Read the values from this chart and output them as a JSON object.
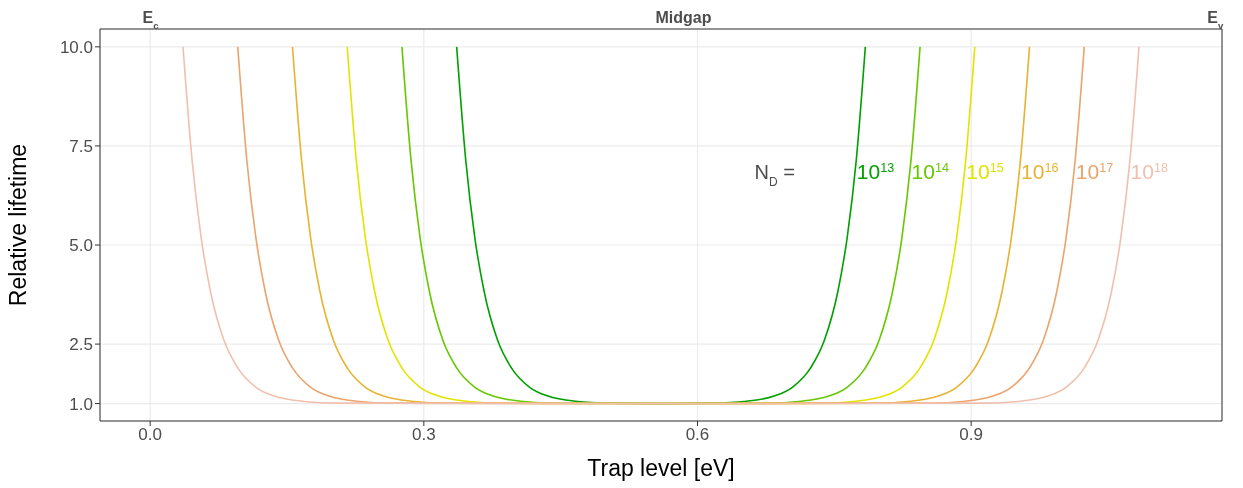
{
  "chart_data": {
    "type": "line",
    "xlabel": "Trap level [eV]",
    "ylabel": "Relative lifetime",
    "legend_title": "N$_{D}$ =",
    "xlim": [
      -0.055,
      1.175
    ],
    "xticks": [
      {
        "value": 0,
        "label": "0.0"
      },
      0.3,
      0.6,
      0.9
    ],
    "annotations": [
      "E$_{c}$",
      "Midgap",
      "E$_{v}$"
    ],
    "ylim": [
      0.56,
      10.45
    ],
    "yticks": [
      {
        "value": 1,
        "label": "1.0"
      },
      2.5,
      {
        "value": 5,
        "label": "5.0"
      },
      7.5,
      {
        "value": 10,
        "label": "10.0"
      }
    ],
    "grid": true,
    "series": [
      {
        "name": "10$^{13}$",
        "color": "#00a000",
        "x": [
          0.336,
          0.346,
          0.356,
          0.366,
          0.381,
          0.396,
          0.416,
          0.436,
          0.466,
          0.506,
          0.56,
          0.614,
          0.654,
          0.684,
          0.704,
          0.724,
          0.739,
          0.754,
          0.764,
          0.774,
          0.784
        ],
        "values": [
          10,
          7.13,
          5.17,
          3.84,
          2.59,
          1.9,
          1.41,
          1.19,
          1.06,
          1.01,
          1,
          1.01,
          1.06,
          1.19,
          1.41,
          1.9,
          2.59,
          3.84,
          5.17,
          7.13,
          10
        ]
      },
      {
        "name": "10$^{14}$",
        "color": "#66c800",
        "x": [
          0.276,
          0.286,
          0.296,
          0.306,
          0.321,
          0.336,
          0.356,
          0.376,
          0.406,
          0.446,
          0.56,
          0.674,
          0.714,
          0.744,
          0.764,
          0.784,
          0.799,
          0.814,
          0.824,
          0.834,
          0.844
        ],
        "values": [
          10,
          7.13,
          5.17,
          3.84,
          2.59,
          1.9,
          1.41,
          1.19,
          1.06,
          1.01,
          1,
          1.01,
          1.06,
          1.19,
          1.41,
          1.9,
          2.59,
          3.84,
          5.17,
          7.13,
          10
        ]
      },
      {
        "name": "10$^{15}$",
        "color": "#e3e300",
        "x": [
          0.216,
          0.226,
          0.236,
          0.246,
          0.261,
          0.276,
          0.296,
          0.316,
          0.346,
          0.386,
          0.56,
          0.734,
          0.774,
          0.804,
          0.824,
          0.844,
          0.859,
          0.874,
          0.884,
          0.894,
          0.904
        ],
        "values": [
          10,
          7.13,
          5.17,
          3.84,
          2.59,
          1.9,
          1.41,
          1.19,
          1.06,
          1.01,
          1,
          1.01,
          1.06,
          1.19,
          1.41,
          1.9,
          2.59,
          3.84,
          5.17,
          7.13,
          10
        ]
      },
      {
        "name": "10$^{16}$",
        "color": "#e8b232",
        "x": [
          0.156,
          0.166,
          0.176,
          0.186,
          0.201,
          0.216,
          0.236,
          0.256,
          0.286,
          0.326,
          0.56,
          0.794,
          0.834,
          0.864,
          0.884,
          0.904,
          0.919,
          0.934,
          0.944,
          0.954,
          0.964
        ],
        "values": [
          10,
          7.13,
          5.17,
          3.84,
          2.59,
          1.9,
          1.41,
          1.19,
          1.06,
          1.01,
          1,
          1.01,
          1.06,
          1.19,
          1.41,
          1.9,
          2.59,
          3.84,
          5.17,
          7.13,
          10
        ]
      },
      {
        "name": "10$^{17}$",
        "color": "#eba46c",
        "x": [
          0.096,
          0.106,
          0.116,
          0.126,
          0.141,
          0.156,
          0.176,
          0.196,
          0.226,
          0.266,
          0.56,
          0.854,
          0.894,
          0.924,
          0.944,
          0.964,
          0.979,
          0.994,
          1.004,
          1.014,
          1.024
        ],
        "values": [
          10,
          7.13,
          5.17,
          3.84,
          2.59,
          1.9,
          1.41,
          1.19,
          1.06,
          1.01,
          1,
          1.01,
          1.06,
          1.19,
          1.41,
          1.9,
          2.59,
          3.84,
          5.17,
          7.13,
          10
        ]
      },
      {
        "name": "10$^{18}$",
        "color": "#f0c0ae",
        "x": [
          0.036,
          0.046,
          0.056,
          0.066,
          0.081,
          0.096,
          0.116,
          0.136,
          0.166,
          0.206,
          0.56,
          0.914,
          0.954,
          0.984,
          1.004,
          1.024,
          1.039,
          1.054,
          1.064,
          1.074,
          1.084
        ],
        "values": [
          10,
          7.13,
          5.17,
          3.84,
          2.59,
          1.9,
          1.41,
          1.19,
          1.06,
          1.01,
          1,
          1.01,
          1.06,
          1.19,
          1.41,
          1.9,
          2.59,
          3.84,
          5.17,
          7.13,
          10
        ]
      }
    ]
  }
}
